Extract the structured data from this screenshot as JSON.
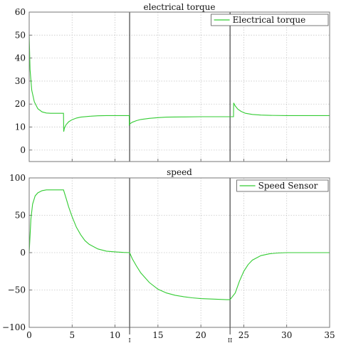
{
  "chart_data": [
    {
      "type": "line",
      "title": "electrical torque",
      "xlabel": "",
      "ylabel": "",
      "xlim": [
        0,
        35
      ],
      "ylim": [
        -5,
        60
      ],
      "xticks": [
        0,
        5,
        10,
        15,
        20,
        25,
        30,
        35
      ],
      "yticks": [
        0,
        10,
        20,
        30,
        40,
        50,
        60
      ],
      "ytick_labels": [
        "0",
        "10",
        "20",
        "30",
        "40",
        "50",
        "60"
      ],
      "grid": true,
      "legend_position": "top-right",
      "series": [
        {
          "name": "Electrical torque",
          "color": "#33cc33",
          "x": [
            0,
            0.1,
            0.3,
            0.6,
            1.0,
            1.5,
            2.0,
            2.5,
            3.0,
            3.5,
            4.0,
            4.02,
            4.1,
            4.3,
            4.6,
            5.0,
            5.5,
            6.0,
            7.0,
            8.0,
            9.0,
            10.0,
            11.0,
            11.65,
            11.66,
            11.8,
            12.0,
            12.5,
            13.0,
            14.0,
            15.0,
            16.0,
            18.0,
            20.0,
            22.0,
            23.5,
            23.8,
            23.82,
            24.0,
            24.3,
            24.7,
            25.2,
            26.0,
            27.0,
            28.0,
            30.0,
            32.0,
            35.0
          ],
          "y": [
            50,
            35,
            26,
            21,
            18,
            16.6,
            16.1,
            16,
            16,
            16,
            16,
            8,
            9.5,
            11,
            12.3,
            13.2,
            13.9,
            14.3,
            14.7,
            14.9,
            15,
            15,
            15,
            15,
            11,
            11.6,
            12.1,
            12.8,
            13.3,
            13.8,
            14.1,
            14.3,
            14.4,
            14.5,
            14.5,
            14.5,
            14.5,
            20.5,
            19.2,
            17.8,
            16.8,
            16,
            15.5,
            15.2,
            15.1,
            15,
            15,
            15
          ]
        }
      ],
      "cursors": [
        {
          "x": 11.7,
          "label": "I"
        },
        {
          "x": 23.4,
          "label": "II"
        }
      ]
    },
    {
      "type": "line",
      "title": "speed",
      "xlabel": "",
      "ylabel": "",
      "xlim": [
        0,
        35
      ],
      "ylim": [
        -100,
        100
      ],
      "xticks": [
        0,
        5,
        10,
        15,
        20,
        25,
        30,
        35
      ],
      "xtick_labels": [
        "0",
        "5",
        "10",
        "15",
        "20",
        "25",
        "30",
        "35"
      ],
      "yticks": [
        -100,
        -50,
        0,
        50,
        100
      ],
      "ytick_labels": [
        "−100",
        "−50",
        "0",
        "50",
        "100"
      ],
      "grid": true,
      "legend_position": "top-right",
      "series": [
        {
          "name": "Speed Sensor",
          "color": "#33cc33",
          "x": [
            0,
            0.2,
            0.4,
            0.7,
            1.0,
            1.5,
            2.0,
            2.5,
            3.0,
            3.5,
            4.0,
            4.3,
            4.6,
            5.0,
            5.5,
            6.0,
            6.5,
            7.0,
            8.0,
            9.0,
            10.0,
            11.0,
            11.7,
            12.0,
            12.5,
            13.0,
            14.0,
            15.0,
            16.0,
            17.0,
            18.0,
            19.0,
            20.0,
            21.0,
            22.0,
            23.0,
            23.4,
            24.0,
            24.5,
            25.0,
            25.5,
            26.0,
            27.0,
            28.0,
            29.0,
            30.0,
            32.0,
            35.0
          ],
          "y": [
            0,
            45,
            65,
            76,
            80,
            83,
            84,
            84,
            84,
            84,
            84,
            73,
            61,
            48,
            34,
            24,
            16,
            11,
            5,
            2,
            1,
            0.3,
            0,
            -8,
            -18,
            -27,
            -40,
            -49,
            -54,
            -57,
            -59,
            -60.5,
            -61.5,
            -62,
            -62.5,
            -63,
            -63,
            -54,
            -38,
            -25,
            -16,
            -10,
            -4,
            -1.5,
            -0.5,
            0,
            0,
            0
          ]
        }
      ]
    }
  ]
}
